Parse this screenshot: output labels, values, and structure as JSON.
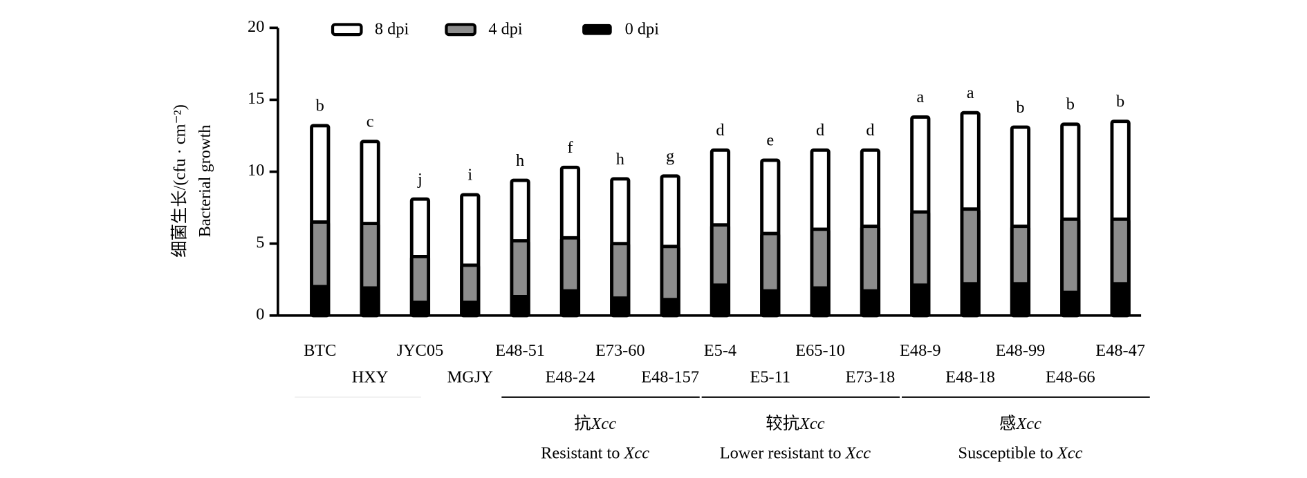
{
  "chart_data": {
    "type": "bar",
    "y_label": "细菌生长/(cfu · cm⁻²)",
    "y_label_en": "Bacterial growth",
    "categories": [
      "BTC",
      "HXY",
      "JYC05",
      "MGJY",
      "E48-51",
      "E48-24",
      "E73-60",
      "E48-157",
      "E5-4",
      "E5-11",
      "E65-10",
      "E73-18",
      "E48-9",
      "E48-18",
      "E48-99",
      "E48-66",
      "E48-47"
    ],
    "series": [
      {
        "name": "8 dpi",
        "color": "#ffffff",
        "values": [
          13.2,
          12.1,
          8.1,
          8.4,
          9.4,
          10.3,
          9.5,
          9.7,
          11.5,
          10.8,
          11.5,
          11.5,
          13.8,
          14.1,
          13.1,
          13.3,
          13.5
        ]
      },
      {
        "name": "4 dpi",
        "color": "#8c8c8c",
        "values": [
          6.5,
          6.4,
          4.1,
          3.5,
          5.2,
          5.4,
          5.0,
          4.8,
          6.3,
          5.7,
          6.0,
          6.2,
          7.2,
          7.4,
          6.2,
          6.7,
          6.7
        ]
      },
      {
        "name": "0 dpi",
        "color": "#000000",
        "values": [
          2.1,
          2.0,
          1.0,
          1.0,
          1.4,
          1.8,
          1.3,
          1.2,
          2.2,
          1.8,
          2.0,
          1.8,
          2.2,
          2.3,
          2.3,
          1.7,
          2.3
        ]
      }
    ],
    "significance": [
      "b",
      "c",
      "j",
      "i",
      "h",
      "f",
      "h",
      "g",
      "d",
      "e",
      "d",
      "d",
      "a",
      "a",
      "b",
      "b",
      "b"
    ],
    "pathogen": "Xcc",
    "groups": [
      {
        "zh": "抗",
        "en": "Resistant to "
      },
      {
        "zh": "较抗",
        "en": "Lower resistant to "
      },
      {
        "zh": "感",
        "en": "Susceptible to "
      }
    ],
    "ylim": [
      0,
      20
    ],
    "yticks": [
      0,
      5,
      10,
      15,
      20
    ],
    "legend": "top"
  }
}
